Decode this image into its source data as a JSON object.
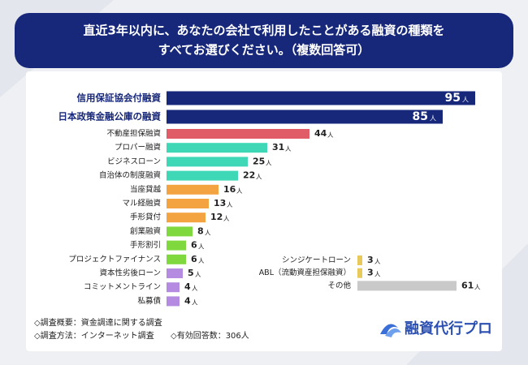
{
  "chart_data": [
    {
      "type": "bar",
      "title": [
        "直近3年以内に、あなたの会社で利用したことがある融資の種類を",
        "すべてお選びください。（複数回答可）"
      ],
      "unit": "人",
      "categories": [
        "信用保証協会付融資",
        "日本政策金融公庫の融資",
        "不動産担保融資",
        "プロパー融資",
        "ビジネスローン",
        "自治体の制度融資",
        "当座貸越",
        "マル経融資",
        "手形貸付",
        "創業融資",
        "手形割引",
        "プロジェクトファイナンス",
        "資本性劣後ローン",
        "コミットメントライン",
        "私募債"
      ],
      "values": [
        95,
        85,
        44,
        31,
        25,
        22,
        16,
        13,
        12,
        8,
        6,
        6,
        5,
        4,
        4
      ],
      "colors": [
        "#17287a",
        "#17287a",
        "#e05c66",
        "#3ed8b6",
        "#3ed8b6",
        "#3ed8b6",
        "#f3a33f",
        "#f3a33f",
        "#f3a33f",
        "#80d83f",
        "#80d83f",
        "#80d83f",
        "#b48be0",
        "#b48be0",
        "#b48be0"
      ]
    },
    {
      "type": "bar",
      "unit": "人",
      "categories": [
        "シンジケートローン",
        "ABL（流動資産担保融資）",
        "その他"
      ],
      "values": [
        3,
        3,
        61
      ],
      "colors": [
        "#e8c95c",
        "#e8c95c",
        "#c9c9c9"
      ]
    }
  ],
  "notes": [
    "◇調査概要：資金調達に関する調査",
    "◇調査方法：インターネット調査",
    "◇有効回答数：306人"
  ],
  "logo": "融資代行プロ"
}
